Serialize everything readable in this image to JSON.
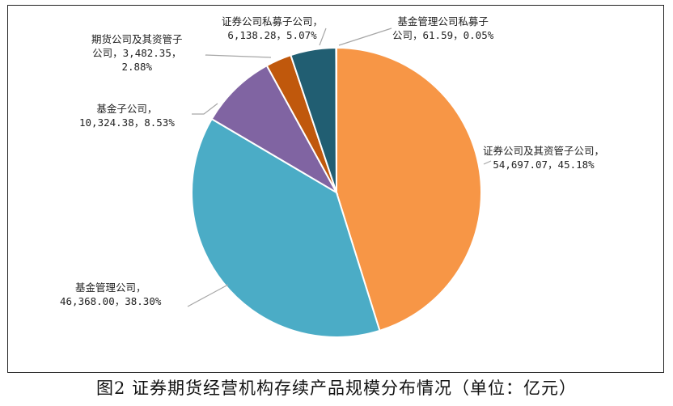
{
  "caption": "图2  证券期货经营机构存续产品规模分布情况（单位：亿元）",
  "chart_data": {
    "type": "pie",
    "unit": "亿元",
    "slices": [
      {
        "name": "证券公司及其资管子公司",
        "value": 54697.07,
        "percent": 45.18,
        "value_label": "54,697.07",
        "percent_label": "45.18%",
        "color": "#f79646"
      },
      {
        "name": "基金管理公司",
        "value": 46368.0,
        "percent": 38.3,
        "value_label": "46,368.00",
        "percent_label": "38.30%",
        "color": "#4bacc6"
      },
      {
        "name": "基金子公司",
        "value": 10324.38,
        "percent": 8.53,
        "value_label": "10,324.38",
        "percent_label": "8.53%",
        "color": "#8064a2"
      },
      {
        "name": "期货公司及其资管子公司",
        "value": 3482.35,
        "percent": 2.88,
        "value_label": "3,482.35",
        "percent_label": "2.88%",
        "color": "#c0580c"
      },
      {
        "name": "证券公司私募子公司",
        "value": 6138.28,
        "percent": 5.07,
        "value_label": "6,138.28",
        "percent_label": "5.07%",
        "color": "#215e72"
      },
      {
        "name": "基金管理公司私募子公司",
        "value": 61.59,
        "percent": 0.05,
        "value_label": "61.59",
        "percent_label": "0.05%",
        "color": "#9bbb59"
      }
    ],
    "labels": [
      [
        "证券公司及其资管子公司，",
        "54,697.07，45.18%"
      ],
      [
        "基金管理公司，",
        "46,368.00，38.30%"
      ],
      [
        "基金子公司，",
        "10,324.38，8.53%"
      ],
      [
        "期货公司及其资管子",
        "公司，3,482.35，",
        "2.88%"
      ],
      [
        "证券公司私募子公司，",
        "6,138.28，5.07%"
      ],
      [
        "基金管理公司私募子",
        "公司，61.59，0.05%"
      ]
    ]
  }
}
